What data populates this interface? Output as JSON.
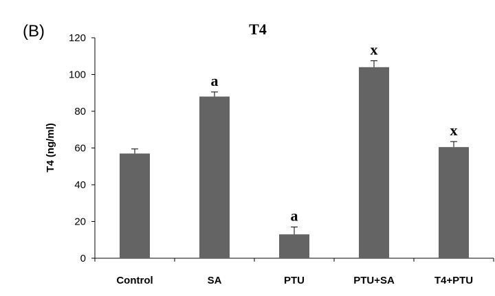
{
  "panel_label": "(B)",
  "chart_data": {
    "type": "bar",
    "title": "T4",
    "xlabel": "",
    "ylabel": "T4 (ng/ml)",
    "ylim": [
      0,
      120
    ],
    "yticks": [
      0,
      20,
      40,
      60,
      80,
      100,
      120
    ],
    "categories": [
      "Control",
      "SA",
      "PTU",
      "PTU+SA",
      "T4+PTU"
    ],
    "values": [
      57,
      88,
      13,
      104,
      60.5
    ],
    "errors": [
      2.5,
      2.5,
      4,
      3.5,
      3
    ],
    "significance": [
      "",
      "a",
      "a",
      "x",
      "x"
    ],
    "bar_color": "#646464",
    "grid": false
  }
}
